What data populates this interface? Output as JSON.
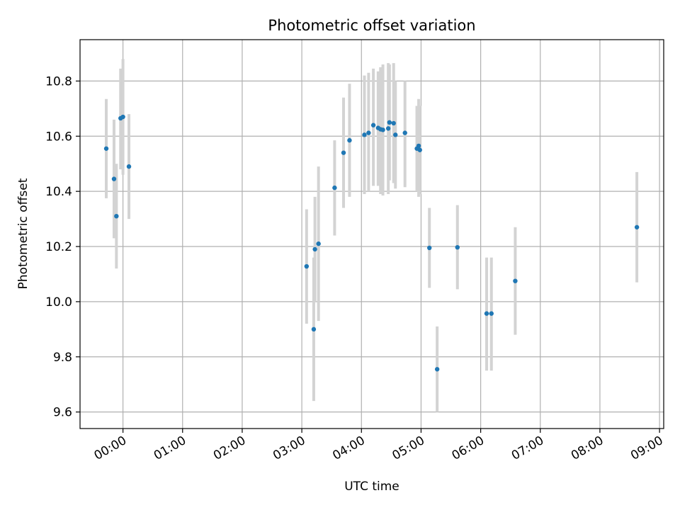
{
  "chart_data": {
    "type": "scatter",
    "title": "Photometric offset variation",
    "xlabel": "UTC time",
    "ylabel": "Photometric offset",
    "x_unit": "hours (UTC)",
    "xlim": [
      -0.72,
      9.07
    ],
    "ylim": [
      9.54,
      10.95
    ],
    "grid": true,
    "x_ticks": [
      {
        "value": 0,
        "label": "00:00"
      },
      {
        "value": 1,
        "label": "01:00"
      },
      {
        "value": 2,
        "label": "02:00"
      },
      {
        "value": 3,
        "label": "03:00"
      },
      {
        "value": 4,
        "label": "04:00"
      },
      {
        "value": 5,
        "label": "05:00"
      },
      {
        "value": 6,
        "label": "06:00"
      },
      {
        "value": 7,
        "label": "07:00"
      },
      {
        "value": 8,
        "label": "08:00"
      },
      {
        "value": 9,
        "label": "09:00"
      }
    ],
    "y_ticks": [
      {
        "value": 9.6,
        "label": "9.6"
      },
      {
        "value": 9.8,
        "label": "9.8"
      },
      {
        "value": 10.0,
        "label": "10.0"
      },
      {
        "value": 10.2,
        "label": "10.2"
      },
      {
        "value": 10.4,
        "label": "10.4"
      },
      {
        "value": 10.6,
        "label": "10.6"
      },
      {
        "value": 10.8,
        "label": "10.8"
      }
    ],
    "colors": {
      "point": "#1f77b4",
      "errorbar": "#d3d3d3",
      "grid": "#b0b0b0"
    },
    "points": [
      {
        "x": -0.28,
        "y": 10.555,
        "err_low": 10.375,
        "err_high": 10.735
      },
      {
        "x": -0.15,
        "y": 10.445,
        "err_low": 10.23,
        "err_high": 10.66
      },
      {
        "x": -0.11,
        "y": 10.31,
        "err_low": 10.12,
        "err_high": 10.5
      },
      {
        "x": -0.04,
        "y": 10.665,
        "err_low": 10.48,
        "err_high": 10.845
      },
      {
        "x": 0.0,
        "y": 10.67,
        "err_low": 10.46,
        "err_high": 10.88
      },
      {
        "x": 0.1,
        "y": 10.49,
        "err_low": 10.3,
        "err_high": 10.68
      },
      {
        "x": 3.08,
        "y": 10.128,
        "err_low": 9.92,
        "err_high": 10.335
      },
      {
        "x": 3.2,
        "y": 9.9,
        "err_low": 9.64,
        "err_high": 10.16
      },
      {
        "x": 3.22,
        "y": 10.19,
        "err_low": 10.0,
        "err_high": 10.38
      },
      {
        "x": 3.28,
        "y": 10.21,
        "err_low": 9.93,
        "err_high": 10.49
      },
      {
        "x": 3.55,
        "y": 10.413,
        "err_low": 10.24,
        "err_high": 10.585
      },
      {
        "x": 3.7,
        "y": 10.54,
        "err_low": 10.34,
        "err_high": 10.74
      },
      {
        "x": 3.8,
        "y": 10.585,
        "err_low": 10.38,
        "err_high": 10.79
      },
      {
        "x": 4.05,
        "y": 10.605,
        "err_low": 10.39,
        "err_high": 10.82
      },
      {
        "x": 4.12,
        "y": 10.612,
        "err_low": 10.4,
        "err_high": 10.83
      },
      {
        "x": 4.2,
        "y": 10.64,
        "err_low": 10.42,
        "err_high": 10.845
      },
      {
        "x": 4.28,
        "y": 10.63,
        "err_low": 10.42,
        "err_high": 10.835
      },
      {
        "x": 4.32,
        "y": 10.625,
        "err_low": 10.39,
        "err_high": 10.85
      },
      {
        "x": 4.36,
        "y": 10.623,
        "err_low": 10.385,
        "err_high": 10.86
      },
      {
        "x": 4.45,
        "y": 10.628,
        "err_low": 10.39,
        "err_high": 10.865
      },
      {
        "x": 4.47,
        "y": 10.65,
        "err_low": 10.44,
        "err_high": 10.86
      },
      {
        "x": 4.54,
        "y": 10.647,
        "err_low": 10.43,
        "err_high": 10.865
      },
      {
        "x": 4.57,
        "y": 10.605,
        "err_low": 10.41,
        "err_high": 10.8
      },
      {
        "x": 4.73,
        "y": 10.612,
        "err_low": 10.415,
        "err_high": 10.8
      },
      {
        "x": 4.93,
        "y": 10.555,
        "err_low": 10.4,
        "err_high": 10.71
      },
      {
        "x": 4.96,
        "y": 10.565,
        "err_low": 10.38,
        "err_high": 10.735
      },
      {
        "x": 4.98,
        "y": 10.55,
        "err_low": 10.39,
        "err_high": 10.71
      },
      {
        "x": 5.14,
        "y": 10.195,
        "err_low": 10.05,
        "err_high": 10.34
      },
      {
        "x": 5.27,
        "y": 9.755,
        "err_low": 9.6,
        "err_high": 9.91
      },
      {
        "x": 5.61,
        "y": 10.197,
        "err_low": 10.045,
        "err_high": 10.35
      },
      {
        "x": 6.1,
        "y": 9.957,
        "err_low": 9.75,
        "err_high": 10.16
      },
      {
        "x": 6.18,
        "y": 9.957,
        "err_low": 9.75,
        "err_high": 10.16
      },
      {
        "x": 6.58,
        "y": 10.075,
        "err_low": 9.88,
        "err_high": 10.27
      },
      {
        "x": 8.62,
        "y": 10.27,
        "err_low": 10.07,
        "err_high": 10.47
      }
    ]
  }
}
